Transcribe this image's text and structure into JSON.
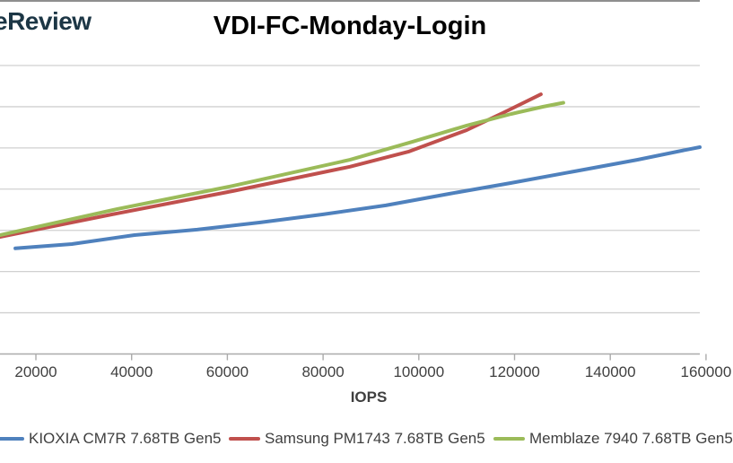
{
  "logo": {
    "text": "eReview",
    "color": "#1c3645"
  },
  "chart_data": {
    "type": "line",
    "title": "VDI-FC-Monday-Login",
    "xlabel": "IOPS",
    "ylabel": "",
    "x_ticks": [
      20000,
      40000,
      60000,
      80000,
      100000,
      120000,
      140000,
      160000
    ],
    "x_tick_labels": [
      "20000",
      "40000",
      "60000",
      "80000",
      "100000",
      "120000",
      "140000",
      "160000"
    ],
    "y_tick_labels_visible": false,
    "y_note": "y-axis labels are cropped out of the image; point y values are given as fraction of plot height above the x-axis (0 = x-axis, 1 = top gridline)",
    "grid": "horizontal",
    "legend_position": "bottom",
    "colors": {
      "grid": "#d0d0d0",
      "axis": "#ababab",
      "tick_text": "#404040"
    },
    "series": [
      {
        "name": "KIOXIA CM7R 7.68TB Gen5",
        "color": "#4F81BD",
        "points": [
          [
            15700,
            0.366
          ],
          [
            27500,
            0.381
          ],
          [
            40600,
            0.412
          ],
          [
            53700,
            0.431
          ],
          [
            66900,
            0.456
          ],
          [
            80000,
            0.484
          ],
          [
            93100,
            0.515
          ],
          [
            106200,
            0.555
          ],
          [
            119300,
            0.593
          ],
          [
            132500,
            0.633
          ],
          [
            145600,
            0.673
          ],
          [
            155900,
            0.708
          ],
          [
            158700,
            0.717
          ]
        ]
      },
      {
        "name": "Samsung PM1743 7.68TB Gen5",
        "color": "#C0504D",
        "points": [
          [
            12500,
            0.406
          ],
          [
            36900,
            0.487
          ],
          [
            61200,
            0.565
          ],
          [
            85600,
            0.649
          ],
          [
            97800,
            0.701
          ],
          [
            110000,
            0.776
          ],
          [
            117500,
            0.835
          ],
          [
            125500,
            0.9
          ]
        ]
      },
      {
        "name": "Memblaze 7940 7.68TB Gen5",
        "color": "#9BBB59",
        "points": [
          [
            12500,
            0.412
          ],
          [
            36900,
            0.502
          ],
          [
            61200,
            0.583
          ],
          [
            85600,
            0.673
          ],
          [
            98700,
            0.736
          ],
          [
            110000,
            0.792
          ],
          [
            119300,
            0.832
          ],
          [
            125900,
            0.857
          ],
          [
            130200,
            0.871
          ]
        ]
      }
    ]
  }
}
